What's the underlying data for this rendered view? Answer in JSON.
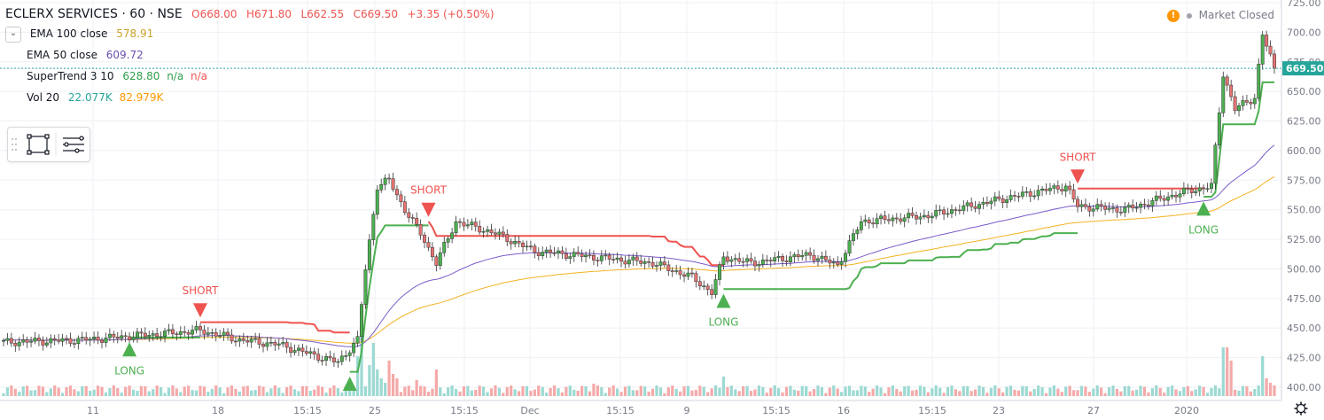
{
  "header": {
    "symbol_title": "ECLERX SERVICES · 60 · NSE",
    "open": "O668.00",
    "high": "H671.80",
    "low": "L662.55",
    "close": "C669.50",
    "change": "+3.35 (+0.50%)"
  },
  "indicators": [
    {
      "label": "EMA 100 close",
      "value": "578.91",
      "color": "#c9a227"
    },
    {
      "label": "EMA 50 close",
      "value": "609.72",
      "color": "#6a4fb3"
    },
    {
      "label": "SuperTrend 3 10",
      "value": "628.80",
      "extra1": "n/a",
      "extra2": "n/a",
      "color": "#2e9e4c",
      "color2": "#ef5350"
    },
    {
      "label": "Vol 20",
      "value": "22.077K",
      "value2": "82.979K",
      "color": "#26a69a",
      "color2": "#ff9800"
    }
  ],
  "market_status": "Market Closed",
  "current_price_label": "669.50",
  "colors": {
    "up": "#26a69a",
    "down": "#ef5350",
    "text": "#131722",
    "axis_text": "#787b86",
    "grid": "#f0f3fa",
    "ema100": "#f3b322",
    "ema50": "#7b5cc9",
    "st_long": "#4caf50",
    "st_short": "#ef5350"
  },
  "chart_data": {
    "type": "candlestick",
    "title": "ECLERX SERVICES · 60 · NSE",
    "ylim": [
      395,
      725
    ],
    "y_ticks": [
      400,
      425,
      450,
      475,
      500,
      525,
      550,
      575,
      600,
      625,
      650,
      675,
      700,
      725
    ],
    "x_ticks": [
      "11",
      "18",
      "15:15",
      "25",
      "15:15",
      "Dec",
      "15:15",
      "9",
      "15:15",
      "16",
      "15:15",
      "23",
      "27",
      "2020"
    ],
    "close_series_anchors": [
      {
        "i": 0,
        "close": 438
      },
      {
        "i": 20,
        "close": 440
      },
      {
        "i": 40,
        "close": 445
      },
      {
        "i": 50,
        "close": 448
      },
      {
        "i": 60,
        "close": 440
      },
      {
        "i": 70,
        "close": 436
      },
      {
        "i": 80,
        "close": 426
      },
      {
        "i": 85,
        "close": 421
      },
      {
        "i": 90,
        "close": 440
      },
      {
        "i": 92,
        "close": 500
      },
      {
        "i": 95,
        "close": 570
      },
      {
        "i": 98,
        "close": 575
      },
      {
        "i": 102,
        "close": 550
      },
      {
        "i": 106,
        "close": 530
      },
      {
        "i": 110,
        "close": 505
      },
      {
        "i": 115,
        "close": 540
      },
      {
        "i": 125,
        "close": 530
      },
      {
        "i": 135,
        "close": 515
      },
      {
        "i": 150,
        "close": 510
      },
      {
        "i": 165,
        "close": 505
      },
      {
        "i": 175,
        "close": 493
      },
      {
        "i": 180,
        "close": 480
      },
      {
        "i": 183,
        "close": 510
      },
      {
        "i": 190,
        "close": 505
      },
      {
        "i": 205,
        "close": 512
      },
      {
        "i": 212,
        "close": 503
      },
      {
        "i": 218,
        "close": 540
      },
      {
        "i": 235,
        "close": 545
      },
      {
        "i": 255,
        "close": 560
      },
      {
        "i": 270,
        "close": 570
      },
      {
        "i": 273,
        "close": 553
      },
      {
        "i": 285,
        "close": 550
      },
      {
        "i": 300,
        "close": 565
      },
      {
        "i": 307,
        "close": 570
      },
      {
        "i": 310,
        "close": 665
      },
      {
        "i": 313,
        "close": 635
      },
      {
        "i": 318,
        "close": 645
      },
      {
        "i": 320,
        "close": 698
      },
      {
        "i": 323,
        "close": 669.5
      }
    ],
    "supertrend_signals": [
      {
        "label": "LONG",
        "i": 32,
        "price": 432
      },
      {
        "label": "SHORT",
        "i": 50,
        "price": 465
      },
      {
        "label": "LONG",
        "i": 88,
        "price": 403
      },
      {
        "label": "SHORT",
        "i": 108,
        "price": 550
      },
      {
        "label": "LONG",
        "i": 183,
        "price": 473
      },
      {
        "label": "SHORT",
        "i": 273,
        "price": 578
      },
      {
        "label": "LONG",
        "i": 305,
        "price": 551
      }
    ],
    "series": [
      {
        "name": "EMA 100 close",
        "last": 578.91
      },
      {
        "name": "EMA 50 close",
        "last": 609.72
      },
      {
        "name": "SuperTrend 3 10",
        "last": 628.8
      },
      {
        "name": "Vol 20",
        "last": "22.077K"
      }
    ]
  }
}
